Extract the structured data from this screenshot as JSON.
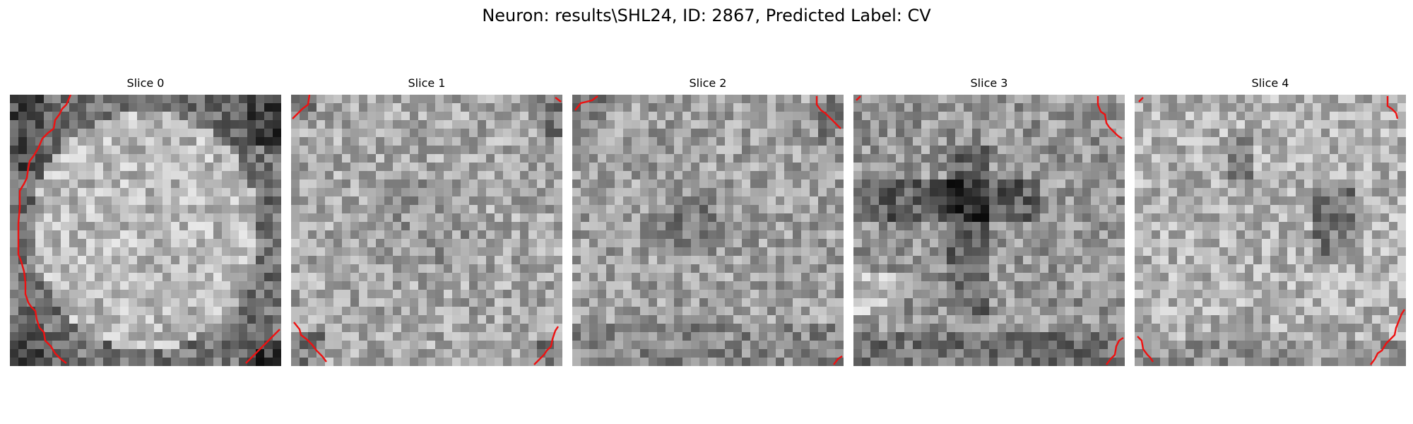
{
  "figure": {
    "title": "Neuron: results\\SHL24, ID: 2867, Predicted Label: CV",
    "contour_color": "#ee1111"
  },
  "slices": [
    {
      "label": "Slice 0",
      "style": "soma",
      "seed": 11
    },
    {
      "label": "Slice 1",
      "style": "soma-dim",
      "seed": 23
    },
    {
      "label": "Slice 2",
      "style": "center-dark",
      "seed": 37
    },
    {
      "label": "Slice 3",
      "style": "dark-cross",
      "seed": 51
    },
    {
      "label": "Slice 4",
      "style": "speckle",
      "seed": 67
    }
  ]
}
